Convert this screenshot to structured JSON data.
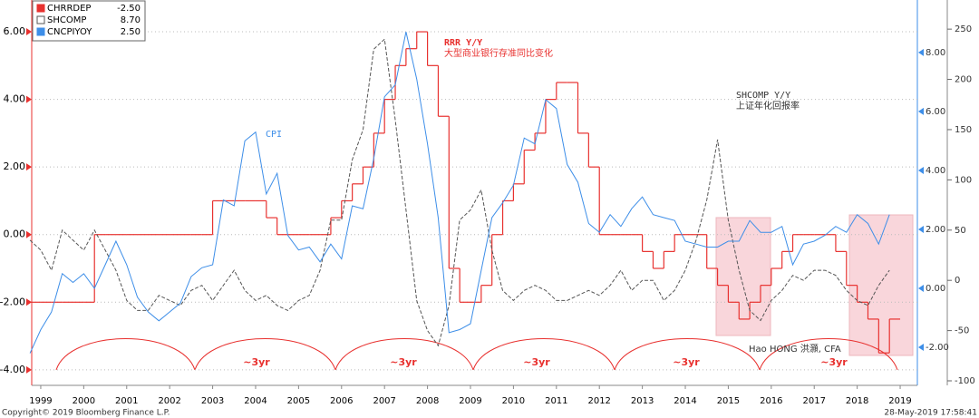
{
  "chart_data": {
    "type": "line",
    "x": [
      1999.25,
      1999.5,
      1999.75,
      2000,
      2000.25,
      2000.5,
      2000.75,
      2001,
      2001.25,
      2001.5,
      2001.75,
      2002,
      2002.25,
      2002.5,
      2002.75,
      2003,
      2003.25,
      2003.5,
      2003.75,
      2004,
      2004.25,
      2004.5,
      2004.75,
      2005,
      2005.25,
      2005.5,
      2005.75,
      2006,
      2006.25,
      2006.5,
      2006.75,
      2007,
      2007.25,
      2007.5,
      2007.75,
      2008,
      2008.25,
      2008.5,
      2008.75,
      2009,
      2009.25,
      2009.5,
      2009.75,
      2010,
      2010.25,
      2010.5,
      2010.75,
      2011,
      2011.25,
      2011.5,
      2011.75,
      2012,
      2012.25,
      2012.5,
      2012.75,
      2013,
      2013.25,
      2013.5,
      2013.75,
      2014,
      2014.25,
      2014.5,
      2014.75,
      2015,
      2015.25,
      2015.5,
      2015.75,
      2016,
      2016.25,
      2016.5,
      2016.75,
      2017,
      2017.25,
      2017.5,
      2017.75,
      2018,
      2018.25,
      2018.5,
      2018.75,
      2019,
      2019.25
    ],
    "xlim": [
      1999.29,
      2019.9
    ],
    "xticks": [
      {
        "value": 1999.5,
        "label": "1999"
      },
      {
        "value": 2000.5,
        "label": "2000"
      },
      {
        "value": 2001.5,
        "label": "2001"
      },
      {
        "value": 2002.5,
        "label": "2002"
      },
      {
        "value": 2003.5,
        "label": "2003"
      },
      {
        "value": 2004.5,
        "label": "2004"
      },
      {
        "value": 2005.5,
        "label": "2005"
      },
      {
        "value": 2006.5,
        "label": "2006"
      },
      {
        "value": 2007.5,
        "label": "2007"
      },
      {
        "value": 2008.5,
        "label": "2008"
      },
      {
        "value": 2009.5,
        "label": "2009"
      },
      {
        "value": 2010.5,
        "label": "2010"
      },
      {
        "value": 2011.5,
        "label": "2011"
      },
      {
        "value": 2012.5,
        "label": "2012"
      },
      {
        "value": 2013.5,
        "label": "2013"
      },
      {
        "value": 2014.5,
        "label": "2014"
      },
      {
        "value": 2015.5,
        "label": "2015"
      },
      {
        "value": 2016.5,
        "label": "2016"
      },
      {
        "value": 2017.5,
        "label": "2017"
      },
      {
        "value": 2018.5,
        "label": "2018"
      },
      {
        "value": 2019.5,
        "label": "2019"
      }
    ],
    "ylim": [
      -4.46,
      6.94
    ],
    "yticks": [
      {
        "value": -4,
        "label": "-4.00"
      },
      {
        "value": -2,
        "label": "-2.00"
      },
      {
        "value": 0,
        "label": "0.00"
      },
      {
        "value": 2,
        "label": "2.00"
      },
      {
        "value": 4,
        "label": "4.00"
      },
      {
        "value": 6,
        "label": "6.00"
      }
    ],
    "y2lim": [
      -3.29,
      9.78
    ],
    "y2ticks": [
      {
        "value": -2,
        "label": "-2.00"
      },
      {
        "value": 0,
        "label": "0.00"
      },
      {
        "value": 2,
        "label": "2.00"
      },
      {
        "value": 4,
        "label": "4.00"
      },
      {
        "value": 6,
        "label": "6.00"
      },
      {
        "value": 8,
        "label": "8.00"
      }
    ],
    "y3lim": [
      -104.5,
      279
    ],
    "y3ticks": [
      -100,
      -50,
      0,
      50,
      100,
      150,
      200,
      250
    ],
    "grid": true,
    "series": [
      {
        "name": "CHRRDEP",
        "legend_value": "-2.50",
        "color": "#e8312f",
        "axis": "y",
        "step": true,
        "values": [
          -2,
          -2,
          -2,
          -2,
          -2,
          -2,
          0,
          0,
          0,
          0,
          0,
          0,
          0,
          0,
          0,
          0,
          0,
          1,
          1,
          1,
          1,
          1,
          0.5,
          0,
          0,
          0,
          0,
          0,
          0.5,
          1,
          1.5,
          2,
          3,
          4,
          5,
          5.5,
          6,
          5,
          3.5,
          -1,
          -2,
          -2,
          -1.5,
          0,
          1,
          1.5,
          2.5,
          3,
          4,
          4.5,
          4.5,
          3,
          2,
          0,
          0,
          0,
          0,
          -0.5,
          -1,
          -0.5,
          0,
          0,
          0,
          -1,
          -1.5,
          -2,
          -2.5,
          -2,
          -1.5,
          -1,
          -0.5,
          0,
          0,
          0,
          0,
          -0.5,
          -1.5,
          -2,
          -2.5,
          -3.5,
          -2.5
        ]
      },
      {
        "name": "SHCOMP",
        "legend_value": "8.70",
        "color": "#555555",
        "axis": "y3",
        "dashed": true,
        "values": [
          40,
          30,
          10,
          50,
          40,
          30,
          50,
          30,
          10,
          -20,
          -30,
          -30,
          -15,
          -20,
          -25,
          -10,
          -5,
          -20,
          -5,
          10,
          -10,
          -20,
          -15,
          -25,
          -30,
          -20,
          -15,
          10,
          60,
          60,
          120,
          150,
          230,
          240,
          160,
          70,
          -20,
          -50,
          -65,
          -25,
          60,
          70,
          90,
          30,
          -10,
          -20,
          -10,
          -5,
          -10,
          -20,
          -20,
          -15,
          -10,
          -15,
          -5,
          10,
          -10,
          0,
          0,
          -20,
          -10,
          10,
          40,
          80,
          140,
          60,
          10,
          -30,
          -40,
          -20,
          -10,
          5,
          0,
          10,
          10,
          5,
          -10,
          -20,
          -25,
          -5,
          10
        ]
      },
      {
        "name": "CNCPIYOY",
        "legend_value": "2.50",
        "color": "#3d8ee8",
        "axis": "y2",
        "values": [
          -2.2,
          -1.4,
          -0.8,
          0.5,
          0.2,
          0.5,
          0,
          0.8,
          1.6,
          0.8,
          -0.3,
          -0.8,
          -1.1,
          -0.8,
          -0.5,
          0.4,
          0.7,
          0.8,
          3,
          2.8,
          5,
          5.3,
          3.2,
          3.9,
          1.8,
          1.3,
          1.4,
          0.9,
          1.5,
          1,
          2.8,
          2.7,
          4.4,
          6.5,
          6.9,
          8.7,
          7.1,
          4.9,
          2.4,
          -1.5,
          -1.4,
          -1.2,
          0.6,
          2.4,
          2.9,
          3.5,
          5.1,
          4.9,
          6.4,
          6.1,
          4.2,
          3.6,
          2.2,
          1.9,
          2.5,
          2.1,
          2.7,
          3.1,
          2.5,
          2.4,
          2.3,
          1.6,
          1.5,
          1.4,
          1.4,
          1.6,
          1.6,
          2.3,
          1.9,
          1.9,
          2.1,
          0.8,
          1.5,
          1.6,
          1.8,
          2.1,
          1.9,
          2.5,
          2.2,
          1.5,
          2.5
        ]
      }
    ],
    "annotations": [
      "RRR Y/Y",
      "大型商业银行存准同比变化",
      "SHCOMP Y/Y",
      "上证年化回报率",
      "CPI",
      "Hao HONG 洪灝, CFA"
    ],
    "cycle_labels": [
      "~3yr",
      "~3yr",
      "~3yr",
      "~3yr",
      "~3yr"
    ],
    "copyright": "Copyright© 2019 Bloomberg Finance L.P.",
    "timestamp": "28-May-2019 17:58:41"
  }
}
